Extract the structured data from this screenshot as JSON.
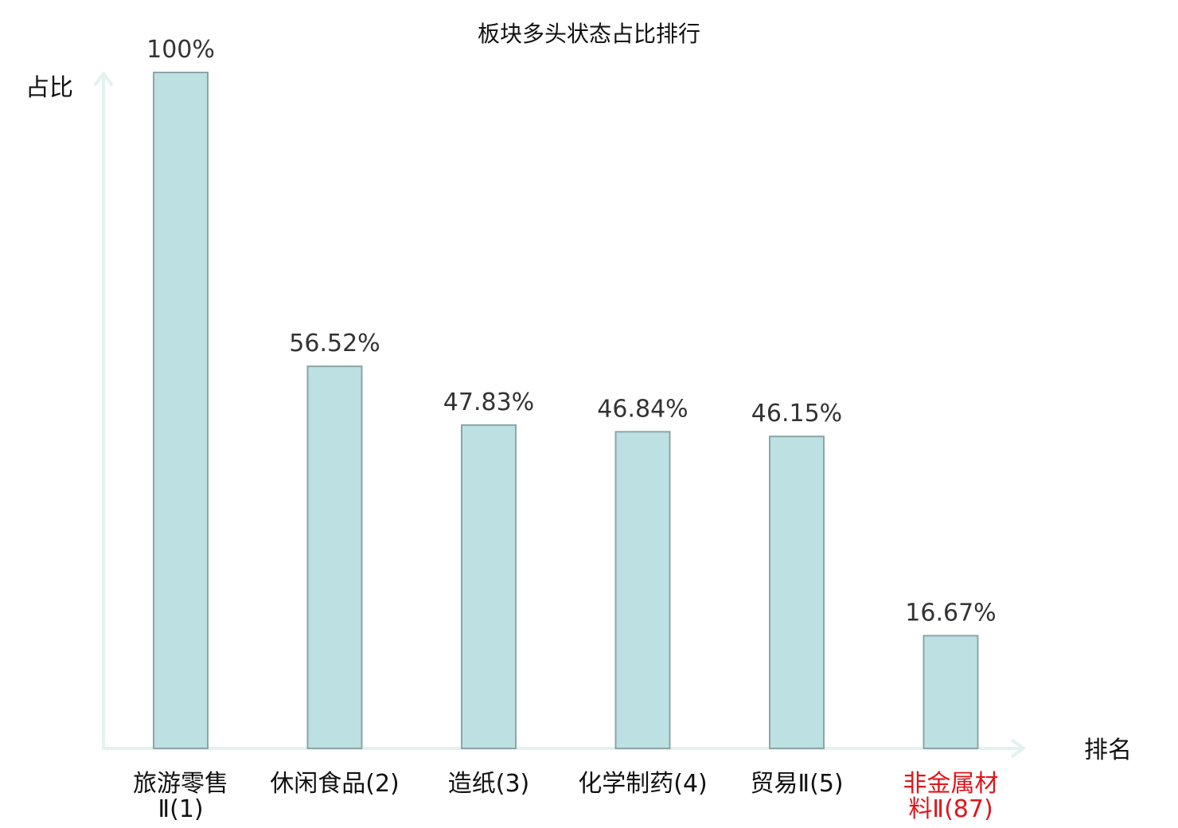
{
  "chart_data": {
    "type": "bar",
    "title": "板块多头状态占比排行",
    "ylabel": "占比",
    "xlabel": "排名",
    "ylim": [
      0,
      100
    ],
    "categories": [
      [
        "旅游零售",
        "Ⅱ(1)"
      ],
      [
        "休闲食品(2)"
      ],
      [
        "造纸(3)"
      ],
      [
        "化学制药(4)"
      ],
      [
        "贸易Ⅱ(5)"
      ],
      [
        "非金属材",
        "料Ⅱ(87)"
      ]
    ],
    "values": [
      100,
      56.52,
      47.83,
      46.84,
      46.15,
      16.67
    ],
    "value_labels": [
      "100%",
      "56.52%",
      "47.83%",
      "46.84%",
      "46.15%",
      "16.67%"
    ],
    "highlight_index": 5,
    "colors": {
      "bar_fill": "#bde0e3",
      "bar_stroke": "#8aa6a8",
      "axis": "#e2f2ef",
      "highlight_text": "#e0151b",
      "text": "#111111"
    },
    "grid": false
  }
}
